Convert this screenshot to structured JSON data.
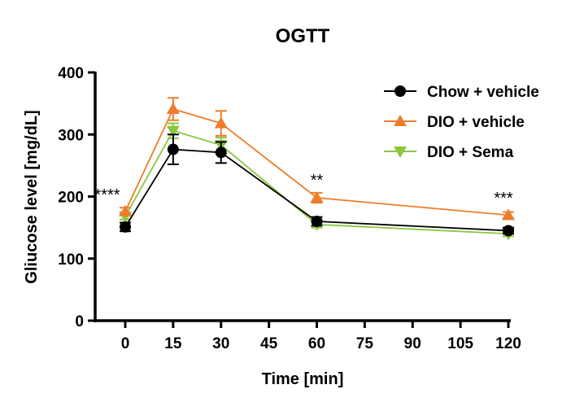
{
  "chart_data": {
    "type": "line",
    "title": "OGTT",
    "xlabel": "Time [min]",
    "ylabel": "Gliucose level [mg/dL]",
    "xlim": [
      -10,
      120
    ],
    "ylim": [
      0,
      400
    ],
    "x_ticks": [
      0,
      15,
      30,
      45,
      60,
      75,
      90,
      105,
      120
    ],
    "y_ticks": [
      0,
      100,
      200,
      300,
      400
    ],
    "x": [
      0,
      15,
      30,
      60,
      120
    ],
    "legend_position": "top-right",
    "series": [
      {
        "name": "Chow + vehicle",
        "color": "#000000",
        "marker": "circle",
        "values": [
          151,
          276,
          271,
          160,
          145
        ],
        "errors": [
          7,
          24,
          17,
          7,
          5
        ]
      },
      {
        "name": "DIO + vehicle",
        "color": "#ee7d2b",
        "marker": "triangle-up",
        "values": [
          176,
          341,
          318,
          198,
          170
        ],
        "errors": [
          6,
          18,
          20,
          8,
          5
        ]
      },
      {
        "name": "DIO + Sema",
        "color": "#8cc63f",
        "marker": "triangle-down",
        "values": [
          168,
          306,
          283,
          155,
          140
        ],
        "errors": [
          5,
          12,
          12,
          5,
          4
        ]
      }
    ],
    "annotations": [
      {
        "x": 0,
        "text": "****"
      },
      {
        "x": 60,
        "text": "**"
      },
      {
        "x": 120,
        "text": "***"
      }
    ]
  }
}
